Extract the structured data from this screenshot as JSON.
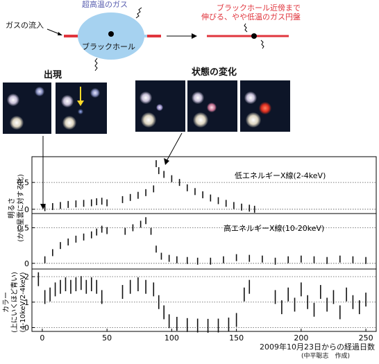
{
  "diagram": {
    "gas_inflow": "ガスの流入",
    "hot_gas": "超高温のガス",
    "black_hole": "ブラックホール",
    "disk_line1": "ブラックホール近傍まで",
    "disk_line2": "伸びる、やや低温のガス円盤"
  },
  "photos": {
    "appearance_label": "出現",
    "state_change_label": "状態の変化"
  },
  "colors": {
    "hot_gas_blue": "#a6d2f0",
    "disk_red": "#e0353d",
    "diagram_label_blue": "#5a5fb0",
    "diagram_label_red": "#e0353d",
    "data_black": "#111111"
  },
  "chart_data": [
    {
      "type": "scatter",
      "name": "低エネルギーX線(2-4keV)",
      "panel_label": "低エネルギーX線(2-4keV)",
      "ylabel": "明るさ\n(かに星雲に対する比)",
      "yticks": [
        "0",
        "0.5"
      ],
      "ylim": [
        -0.08,
        0.98
      ],
      "grid_y": [
        0,
        0.5
      ],
      "x": [
        2,
        8,
        14,
        20,
        26,
        32,
        38,
        42,
        46,
        50,
        62,
        68,
        74,
        80,
        86,
        88,
        90,
        94,
        100,
        106,
        112,
        118,
        124,
        130,
        136,
        142,
        148,
        154,
        160,
        164
      ],
      "y": [
        0.03,
        0.05,
        0.07,
        0.09,
        0.1,
        0.11,
        0.12,
        0.14,
        0.15,
        0.12,
        0.18,
        0.22,
        0.26,
        0.31,
        0.38,
        0.85,
        0.72,
        0.65,
        0.57,
        0.5,
        0.4,
        0.33,
        0.27,
        0.21,
        0.16,
        0.11,
        0.07,
        0.04,
        0.02,
        0.0
      ]
    },
    {
      "type": "scatter",
      "name": "高エネルギーX線(10-20keV)",
      "panel_label": "高エネルギーX線(10-20keV)",
      "yticks": [
        "0",
        "0.5"
      ],
      "ylim": [
        -0.08,
        0.7
      ],
      "grid_y": [
        0,
        0.5
      ],
      "x": [
        2,
        8,
        14,
        20,
        26,
        32,
        38,
        42,
        46,
        50,
        64,
        70,
        76,
        80,
        84,
        88,
        92,
        98,
        104,
        112,
        120,
        130,
        140,
        150,
        160,
        170,
        180,
        190,
        200,
        210,
        220,
        230,
        240,
        250
      ],
      "y": [
        0.05,
        0.15,
        0.25,
        0.3,
        0.34,
        0.37,
        0.4,
        0.44,
        0.48,
        0.46,
        0.45,
        0.5,
        0.55,
        0.6,
        0.45,
        0.2,
        0.1,
        0.07,
        0.05,
        0.04,
        0.03,
        0.03,
        0.05,
        0.08,
        0.07,
        0.06,
        0.03,
        0.05,
        0.06,
        0.05,
        0.04,
        0.06,
        0.05,
        0.04
      ]
    },
    {
      "type": "scatter",
      "name": "カラー",
      "panel_label": "",
      "ylabel": "カラー\n(上にいくほど青い)\n(4-10keV/2-4keV)",
      "yticks": [
        "0",
        "1",
        "2"
      ],
      "ylim": [
        -0.15,
        2.3
      ],
      "grid_y": [
        0,
        1,
        2
      ],
      "x": [
        -3,
        2,
        6,
        10,
        14,
        18,
        22,
        26,
        30,
        34,
        38,
        42,
        46,
        62,
        68,
        74,
        80,
        86,
        90,
        94,
        98,
        104,
        112,
        120,
        128,
        136,
        144,
        150,
        156,
        160,
        180,
        185,
        190,
        195,
        200,
        205,
        210,
        215,
        220,
        225,
        230,
        235,
        240,
        245,
        250
      ],
      "y": [
        1.9,
        1.2,
        1.3,
        1.5,
        1.6,
        1.7,
        1.6,
        1.7,
        1.75,
        1.6,
        1.7,
        1.6,
        1.2,
        1.4,
        1.6,
        1.7,
        1.6,
        1.5,
        1.0,
        0.6,
        0.25,
        0.15,
        0.1,
        0.08,
        0.07,
        0.08,
        0.12,
        0.3,
        1.3,
        1.6,
        1.2,
        0.8,
        1.3,
        0.9,
        1.5,
        1.0,
        0.7,
        1.4,
        0.9,
        1.2,
        0.6,
        1.3,
        1.0,
        0.8,
        1.1
      ]
    }
  ],
  "axis": {
    "xticks": [
      "0",
      "50",
      "100",
      "150",
      "200",
      "250"
    ],
    "xtick_values": [
      0,
      50,
      100,
      150,
      200,
      250
    ],
    "xlim": [
      -8,
      258
    ],
    "xlabel": "2009年10月23日からの経過日数",
    "credit": "(中平聡志　作成)"
  }
}
